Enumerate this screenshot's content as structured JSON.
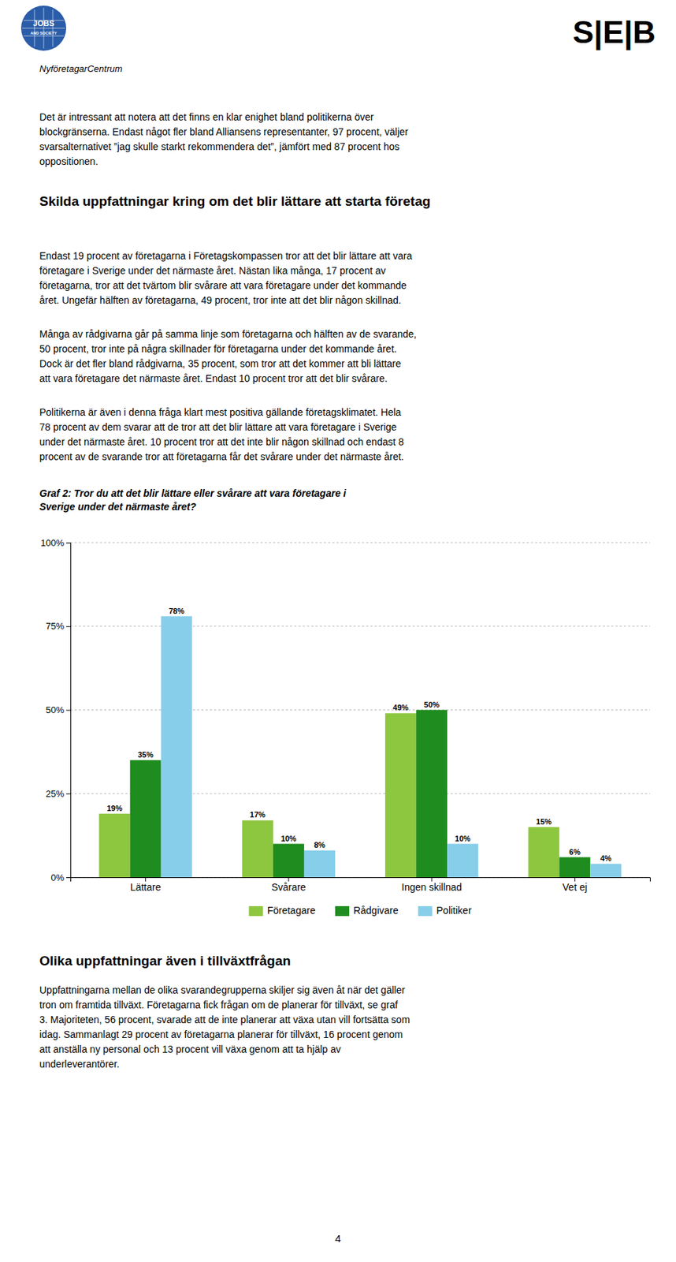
{
  "header": {
    "logo_left": [
      "JOBS",
      "AND SOCIETY"
    ],
    "logo_right": "S|E|B",
    "nfc_label": "NyföretagarCentrum"
  },
  "header_text": "Det är intressant att notera att det finns en klar enighet bland politikerna över\nblockgränserna. Endast något fler bland Alliansens representanter, 97 procent, väljer\nsvarsalternativet ”jag skulle starkt rekommendera det”, jämfört med 87 procent hos\noppositionen.",
  "section_title": "Skilda uppfattningar kring om det blir lättare att starta företag",
  "section_body": [
    "Endast 19 procent av företagarna i Företagskompassen tror att det blir lättare att vara\nföretagare i Sverige under det närmaste året. Nästan lika många, 17 procent av\nföretagarna, tror att det tvärtom blir svårare att vara företagare under det kommande\nåret. Ungefär hälften av företagarna, 49 procent, tror inte att det blir någon skillnad.",
    "Många av rådgivarna går på samma linje som företagarna och hälften av de svarande,\n50 procent, tror inte på några skillnader för företagarna under det kommande året.\nDock är det fler bland rådgivarna, 35 procent, som tror att det kommer att bli lättare\natt vara företagare det närmaste året. Endast 10 procent tror att det blir svårare.",
    "Politikerna är även i denna fråga klart mest positiva gällande företagsklimatet. Hela\n78 procent av dem svarar att de tror att det blir lättare att vara företagare i Sverige\nunder det närmaste året. 10 procent tror att det inte blir någon skillnad och endast 8\nprocent av de svarande tror att företagarna får det svårare under det närmaste året."
  ],
  "chart_data": {
    "type": "bar",
    "title": "Graf 2: Tror du att det blir lättare eller svårare att vara företagare i\nSverige under det närmaste året?",
    "categories": [
      "Lättare",
      "Svårare",
      "Ingen skillnad",
      "Vet ej"
    ],
    "series": [
      {
        "name": "Företagare",
        "color": "#8dc63f",
        "values": [
          19,
          17,
          49,
          15
        ],
        "value_labels": [
          "19%",
          "17%",
          "49%",
          "15%"
        ]
      },
      {
        "name": "Rådgivare",
        "color": "#1e8c1e",
        "values": [
          35,
          10,
          50,
          6
        ],
        "value_labels": [
          "35%",
          "10%",
          "50%",
          "6%"
        ]
      },
      {
        "name": "Politiker",
        "color": "#87ceeb",
        "values": [
          78,
          8,
          10,
          4
        ],
        "value_labels": [
          "78%",
          "8%",
          "10%",
          "4%"
        ]
      }
    ],
    "ylim": [
      0,
      100
    ],
    "yticks": [
      {
        "value": 0,
        "label": "0%"
      },
      {
        "value": 25,
        "label": "25%"
      },
      {
        "value": 50,
        "label": "50%"
      },
      {
        "value": 75,
        "label": "75%"
      },
      {
        "value": 100,
        "label": "100%"
      }
    ],
    "grid": true,
    "legend": "bottom",
    "data_labels": true
  },
  "footer_title": "Olika uppfattningar även i tillväxtfrågan",
  "footer_body": "Uppfattningarna mellan de olika svarandegrupperna skiljer sig även åt när det gäller\ntron om framtida tillväxt. Företagarna fick frågan om de planerar för tillväxt, se graf\n3. Majoriteten, 56 procent, svarade att de inte planerar att växa utan vill fortsätta som\nidag. Sammanlagt 29 procent av företagarna planerar för tillväxt, 16 procent genom\natt anställa ny personal och 13 procent vill växa genom att ta hjälp av\nunderleverantörer.",
  "page_number": "4"
}
